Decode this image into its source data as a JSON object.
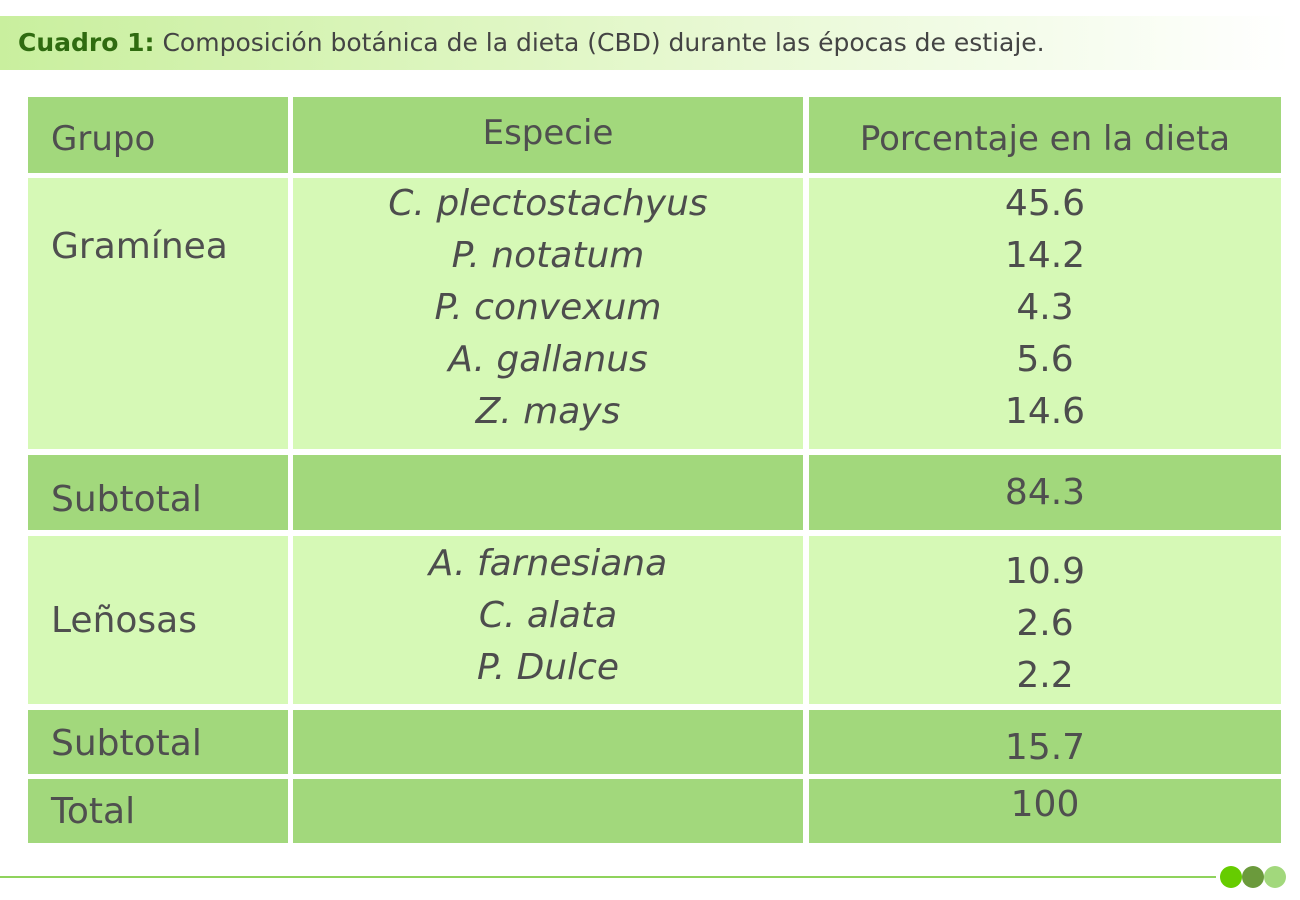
{
  "caption": {
    "label": "Cuadro 1:",
    "text": "Composición botánica de la dieta (CBD) durante las épocas de estiaje."
  },
  "table": {
    "headers": [
      "Grupo",
      "Especie",
      "Porcentaje en la dieta"
    ],
    "gramineas": {
      "group": "Gramínea",
      "species": [
        "C. plectostachyus",
        "P. notatum",
        "P. convexum",
        "A. gallanus",
        "Z. mays"
      ],
      "values": [
        "45.6",
        "14.2",
        "4.3",
        "5.6",
        "14.6"
      ]
    },
    "subtotal_1": {
      "label": "Subtotal",
      "species": "",
      "value": "84.3"
    },
    "lenosas": {
      "group": "Leñosas",
      "species": [
        "A. farnesiana",
        "C. alata",
        "P. Dulce"
      ],
      "values": [
        "10.9",
        "2.6",
        "2.2"
      ]
    },
    "subtotal_2": {
      "label": "Subtotal",
      "species": "",
      "value": "15.7"
    },
    "total": {
      "label": "Total",
      "species": "",
      "value": "100"
    }
  },
  "colors": {
    "header_fill": "#a2d87c",
    "body_fill": "#d6f9b6",
    "caption_label": "#2f6b10",
    "dots": [
      "#66cc00",
      "#6b9a3c",
      "#a2d87c"
    ]
  }
}
